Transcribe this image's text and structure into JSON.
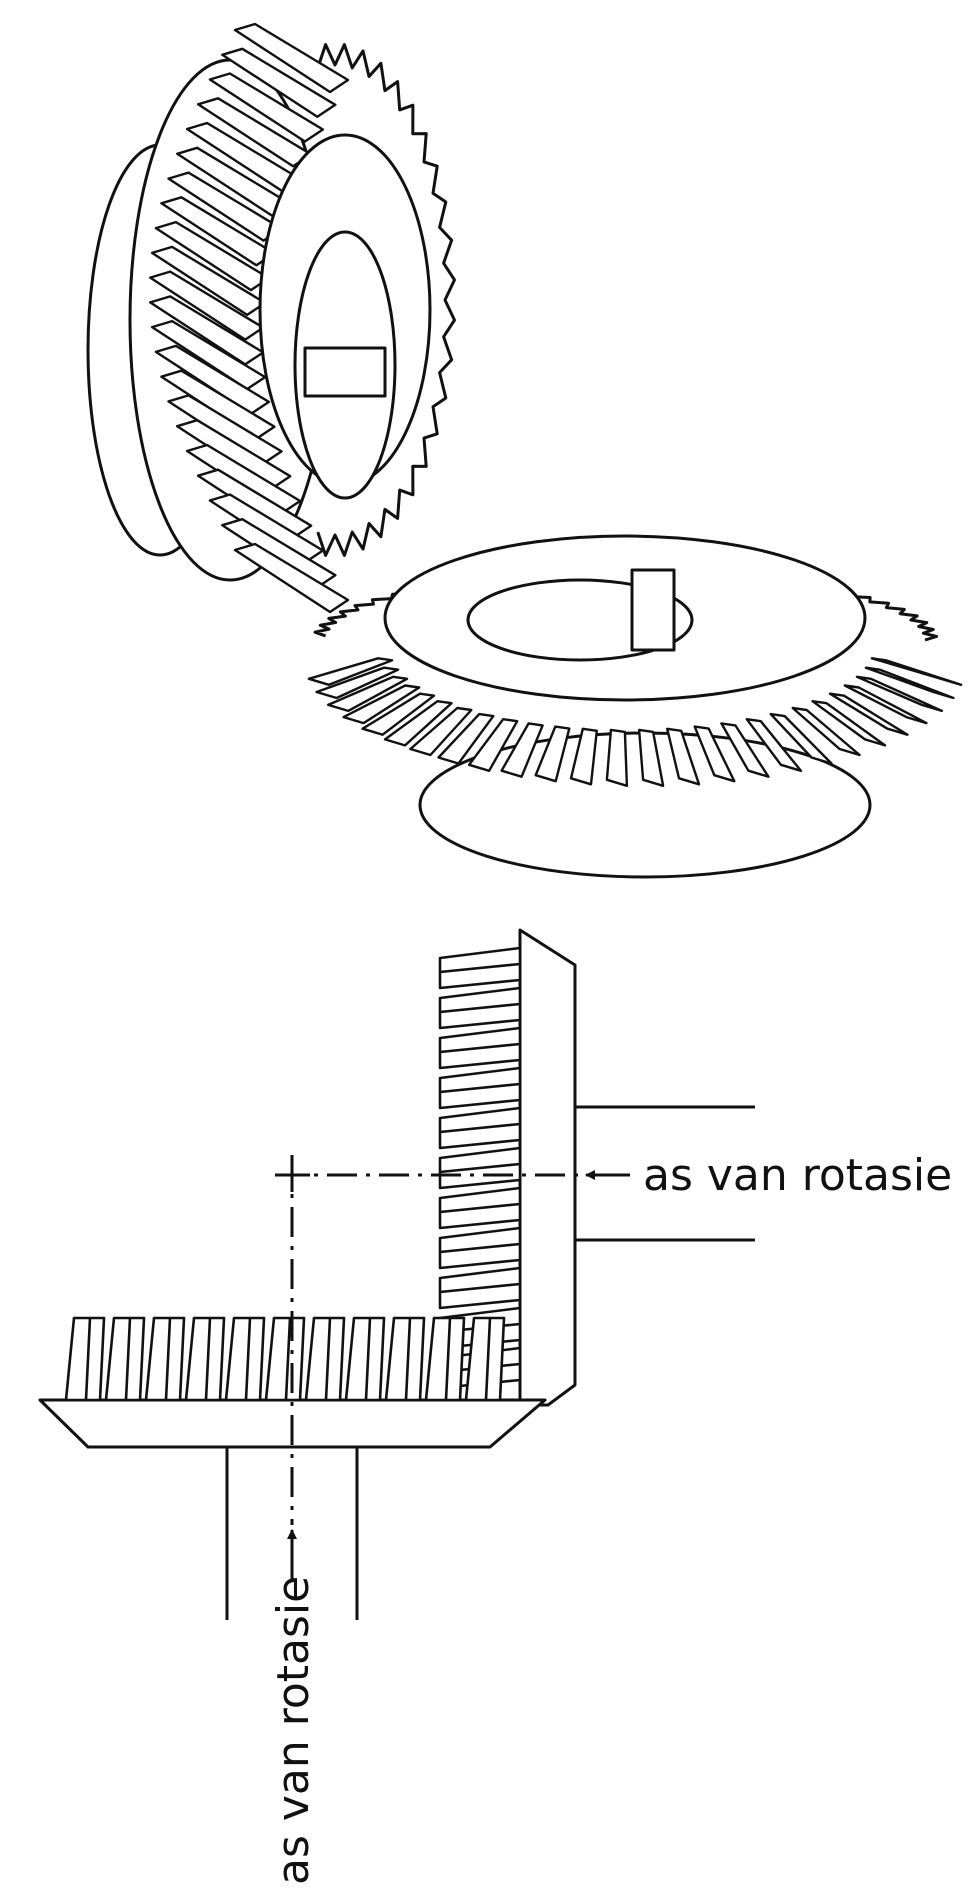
{
  "labels": {
    "axis_horizontal": "as van rotasie",
    "axis_vertical": "as van rotasie"
  },
  "colors": {
    "ink": "#111111",
    "background": "#ffffff"
  }
}
